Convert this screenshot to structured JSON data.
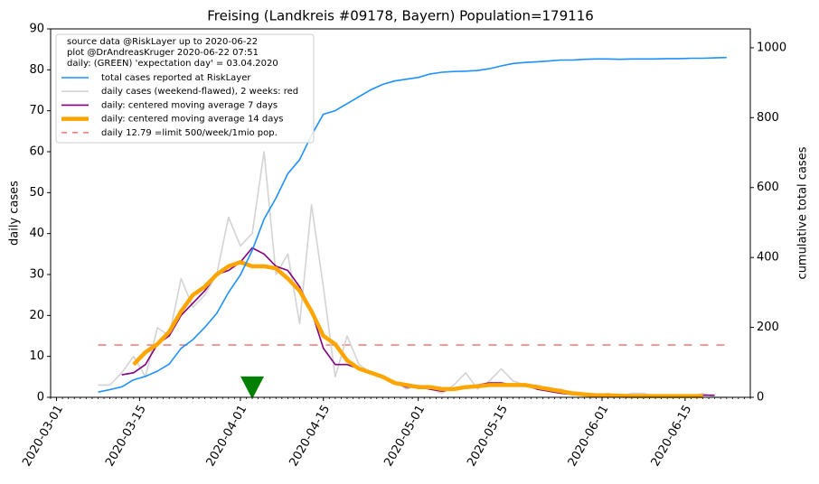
{
  "chart_data": {
    "type": "line",
    "title": "Freising (Landkreis #09178, Bayern) Population=179116",
    "ylabel": "daily cases",
    "ylabel_color": "#800080",
    "y2label": "cumulative total cases",
    "y2label_color": "#1e90ff",
    "legend_note": [
      "source data @RiskLayer up to 2020-06-22",
      "plot @DrAndreasKruger 2020-06-22 07:51",
      "daily: (GREEN) 'expectation day' = 03.04.2020"
    ],
    "legend": "upper left",
    "x": [
      "2020-03-08",
      "2020-03-10",
      "2020-03-12",
      "2020-03-14",
      "2020-03-16",
      "2020-03-18",
      "2020-03-20",
      "2020-03-22",
      "2020-03-24",
      "2020-03-26",
      "2020-03-28",
      "2020-03-30",
      "2020-04-01",
      "2020-04-03",
      "2020-04-05",
      "2020-04-07",
      "2020-04-09",
      "2020-04-11",
      "2020-04-13",
      "2020-04-15",
      "2020-04-17",
      "2020-04-19",
      "2020-04-21",
      "2020-04-23",
      "2020-04-25",
      "2020-04-27",
      "2020-04-29",
      "2020-05-01",
      "2020-05-03",
      "2020-05-05",
      "2020-05-07",
      "2020-05-09",
      "2020-05-11",
      "2020-05-13",
      "2020-05-15",
      "2020-05-17",
      "2020-05-19",
      "2020-05-21",
      "2020-05-23",
      "2020-05-25",
      "2020-05-27",
      "2020-05-29",
      "2020-05-31",
      "2020-06-02",
      "2020-06-04",
      "2020-06-06",
      "2020-06-08",
      "2020-06-10",
      "2020-06-12",
      "2020-06-14",
      "2020-06-16",
      "2020-06-18",
      "2020-06-20",
      "2020-06-22"
    ],
    "series": [
      {
        "name": "total cases reported at RiskLayer",
        "color": "#1e90ff",
        "axis": "y2",
        "linewidth": 1.6,
        "values": [
          15,
          22,
          30,
          50,
          60,
          75,
          95,
          140,
          165,
          200,
          240,
          300,
          350,
          420,
          510,
          570,
          640,
          680,
          750,
          810,
          820,
          840,
          860,
          880,
          895,
          905,
          910,
          915,
          925,
          930,
          932,
          933,
          935,
          940,
          948,
          955,
          958,
          960,
          962,
          965,
          965,
          967,
          968,
          968,
          967,
          968,
          968,
          968,
          969,
          969,
          970,
          970,
          971,
          972
        ]
      },
      {
        "name": "daily cases (weekend-flawed), 2 weeks: red",
        "color": "#d3d3d3",
        "linewidth": 1.6,
        "values": [
          3,
          3,
          6,
          10,
          5,
          17,
          15,
          29,
          22,
          25,
          30,
          44,
          37,
          40,
          60,
          30,
          35,
          18,
          47,
          27,
          5,
          15,
          8,
          6,
          5,
          4,
          2,
          3,
          2,
          1,
          3,
          6,
          2,
          4,
          7,
          4,
          3,
          3,
          2,
          2,
          1,
          1,
          0,
          1,
          0,
          1,
          1,
          0,
          0,
          0,
          0,
          1,
          0,
          0
        ]
      },
      {
        "name": "daily: centered moving average 7 days",
        "color": "#800080",
        "linewidth": 1.6,
        "values": [
          null,
          null,
          5.5,
          6,
          8,
          13,
          15,
          20,
          23,
          26,
          30,
          31,
          33,
          36.5,
          35,
          32,
          31,
          27,
          21,
          12,
          8,
          8,
          7,
          6,
          5,
          3.5,
          2.5,
          2.5,
          2,
          1.5,
          2,
          2.5,
          3,
          3.5,
          3.5,
          3,
          3,
          2,
          1.5,
          1,
          0.7,
          0.5,
          0.5,
          0.5,
          0.5,
          0.3,
          0.3,
          0.3,
          0.3,
          0.5,
          0.3,
          0.5,
          0.5,
          null
        ]
      },
      {
        "name": "daily: centered moving average 14 days",
        "color": "#ffa500",
        "linewidth": 4.5,
        "values": [
          null,
          null,
          null,
          8,
          11,
          13,
          16,
          21,
          25,
          27,
          30,
          32,
          33,
          32,
          32,
          31.5,
          29,
          26,
          21,
          15,
          13,
          9,
          7,
          6,
          5,
          3.5,
          3,
          2.5,
          2.5,
          2,
          2,
          2.5,
          2.7,
          3,
          3,
          3,
          3,
          2.5,
          2,
          1.5,
          1,
          0.7,
          0.5,
          0.5,
          0.4,
          0.3,
          0.3,
          0.3,
          0.3,
          0.3,
          0.3,
          0.3,
          null,
          null
        ]
      }
    ],
    "hline": {
      "name": "daily 12.79 =limit 500/week/1mio pop.",
      "value": 12.79,
      "color": "#f08080",
      "from": "2020-03-08",
      "to": "2020-06-22"
    },
    "marker": {
      "x": "2020-04-03",
      "y": 2,
      "color": "#008000"
    },
    "xlim": [
      "2020-02-29",
      "2020-06-26"
    ],
    "xticks": [
      "2020-03-01",
      "2020-03-15",
      "2020-04-01",
      "2020-04-15",
      "2020-05-01",
      "2020-05-15",
      "2020-06-01",
      "2020-06-15"
    ],
    "ylim": [
      0,
      90
    ],
    "yticks": [
      0,
      10,
      20,
      30,
      40,
      50,
      60,
      70,
      80,
      90
    ],
    "y2lim": [
      0,
      1054
    ],
    "y2ticks": [
      0,
      200,
      400,
      600,
      800,
      1000
    ]
  }
}
